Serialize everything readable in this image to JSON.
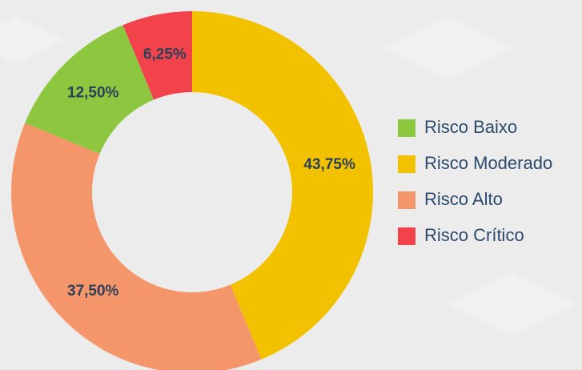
{
  "chart_data": {
    "type": "donut",
    "categories": [
      "Risco Baixo",
      "Risco Moderado",
      "Risco Alto",
      "Risco Crítico"
    ],
    "values": [
      12.5,
      43.75,
      37.5,
      6.25
    ],
    "value_labels": [
      "12,50%",
      "43,75%",
      "37,50%",
      "6,25%"
    ],
    "colors": [
      "#8dc63f",
      "#f2c200",
      "#f5956a",
      "#f2434c"
    ],
    "legend": "right"
  }
}
